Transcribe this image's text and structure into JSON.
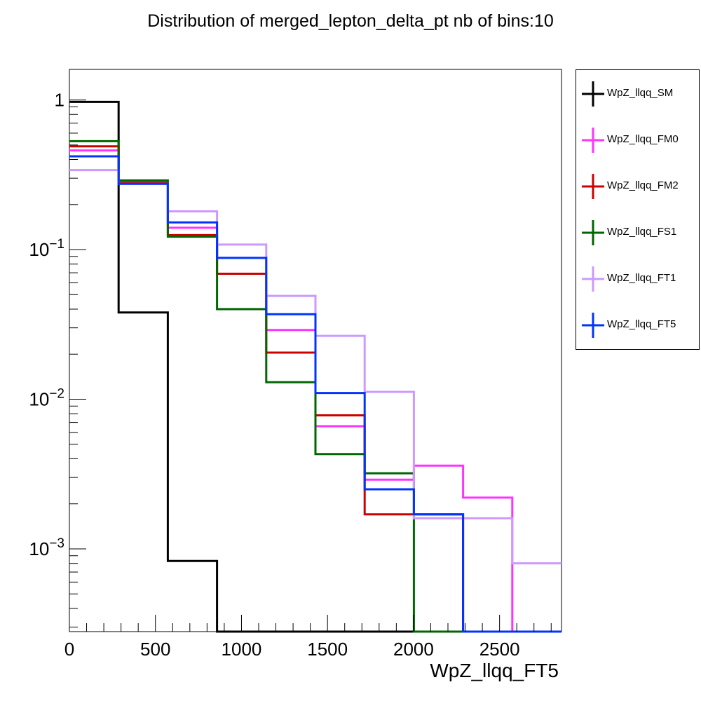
{
  "chart_data": {
    "type": "step-histogram",
    "title": "Distribution of merged_lepton_delta_pt nb of bins:10",
    "xlabel": "WpZ_llqq_FT5",
    "ylabel": "",
    "yscale": "log",
    "xlim": [
      0,
      2860
    ],
    "ylim": [
      0.00028,
      1.6
    ],
    "grid": false,
    "legend_position": "right",
    "bin_edges": [
      0,
      286,
      572,
      858,
      1144,
      1430,
      1716,
      2002,
      2288,
      2574,
      2860
    ],
    "x_ticks": [
      0,
      500,
      1000,
      1500,
      2000,
      2500
    ],
    "x_tick_labels": [
      "0",
      "500",
      "1000",
      "1500",
      "2000",
      "2500"
    ],
    "y_ticks": [
      {
        "value": 1,
        "base": "1",
        "exp": ""
      },
      {
        "value": 0.1,
        "base": "10",
        "exp": "−1"
      },
      {
        "value": 0.01,
        "base": "10",
        "exp": "−2"
      },
      {
        "value": 0.001,
        "base": "10",
        "exp": "−3"
      }
    ],
    "series": [
      {
        "name": "WpZ_llqq_SM",
        "color": "#000000",
        "values": [
          0.97,
          0.038,
          0.00083,
          0,
          0,
          0,
          0,
          0,
          0,
          0
        ]
      },
      {
        "name": "WpZ_llqq_FM0",
        "color": "#ff33ff",
        "values": [
          0.46,
          0.28,
          0.14,
          0.069,
          0.029,
          0.0066,
          0.0029,
          0.0036,
          0.0022,
          0
        ]
      },
      {
        "name": "WpZ_llqq_FM2",
        "color": "#cc0000",
        "values": [
          0.49,
          0.28,
          0.125,
          0.069,
          0.0205,
          0.0078,
          0.0017,
          0.0017,
          0,
          0
        ]
      },
      {
        "name": "WpZ_llqq_FS1",
        "color": "#006600",
        "values": [
          0.53,
          0.29,
          0.122,
          0.04,
          0.013,
          0.0043,
          0.0032,
          0,
          0,
          0
        ]
      },
      {
        "name": "WpZ_llqq_FT1",
        "color": "#cc99ff",
        "values": [
          0.34,
          0.275,
          0.18,
          0.108,
          0.049,
          0.0265,
          0.0112,
          0.0016,
          0.0016,
          0.0008
        ]
      },
      {
        "name": "WpZ_llqq_FT5",
        "color": "#0033ff",
        "values": [
          0.42,
          0.275,
          0.152,
          0.088,
          0.037,
          0.011,
          0.0025,
          0.0017,
          0,
          0
        ]
      }
    ]
  }
}
